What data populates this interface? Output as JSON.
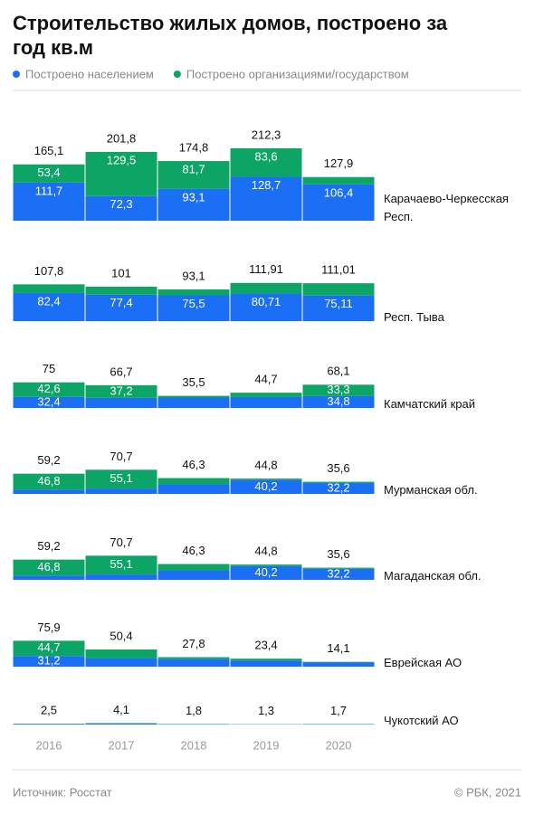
{
  "chart_data": {
    "type": "stacked_bar",
    "title": "Строительство жилых домов, построено за год кв.м",
    "categories": [
      "2016",
      "2017",
      "2018",
      "2019",
      "2020"
    ],
    "series": [
      {
        "name": "Построено населением",
        "color": "#1a6ff4"
      },
      {
        "name": "Построено организациями/государством",
        "color": "#0da566"
      }
    ],
    "ylim": [
      0,
      220
    ],
    "panels": [
      {
        "name": "Карачаево-Черкесская Респ.",
        "totals": [
          165.1,
          201.8,
          174.8,
          212.3,
          127.9
        ],
        "total_labels": [
          "165,1",
          "201,8",
          "174,8",
          "212,3",
          "127,9"
        ],
        "series": [
          {
            "values": [
              111.7,
              72.3,
              93.1,
              128.7,
              106.4
            ],
            "value_labels": [
              "111,7",
              "72,3",
              "93,1",
              "128,7",
              "106,4"
            ]
          },
          {
            "values": [
              53.4,
              129.5,
              81.7,
              83.6,
              21.5
            ],
            "value_labels": [
              "53,4",
              "129,5",
              "81,7",
              "83,6",
              null
            ]
          }
        ]
      },
      {
        "name": "Респ. Тыва",
        "totals": [
          107.8,
          101,
          93.1,
          111.91,
          111.01
        ],
        "total_labels": [
          "107,8",
          "101",
          "93,1",
          "111,91",
          "111,01"
        ],
        "series": [
          {
            "values": [
              82.4,
              77.4,
              75.5,
              80.71,
              75.11
            ],
            "value_labels": [
              "82,4",
              "77,4",
              "75,5",
              "80,71",
              "75,11"
            ]
          },
          {
            "values": [
              25.4,
              23.6,
              17.6,
              31.2,
              35.9
            ],
            "value_labels": [
              null,
              null,
              null,
              null,
              null
            ]
          }
        ]
      },
      {
        "name": "Камчатский край",
        "totals": [
          75,
          66.7,
          35.5,
          44.7,
          68.1
        ],
        "total_labels": [
          "75",
          "66,7",
          "35,5",
          "44,7",
          "68,1"
        ],
        "series": [
          {
            "values": [
              32.4,
              29.5,
              30.5,
              32.0,
              34.8
            ],
            "value_labels": [
              "32,4",
              null,
              null,
              null,
              "34,8"
            ]
          },
          {
            "values": [
              42.6,
              37.2,
              5.0,
              12.7,
              33.3
            ],
            "value_labels": [
              "42,6",
              "37,2",
              null,
              null,
              "33,3"
            ]
          }
        ]
      },
      {
        "name": "Мурманская обл.",
        "totals": [
          59.2,
          70.7,
          46.3,
          44.8,
          35.6
        ],
        "total_labels": [
          "59,2",
          "70,7",
          "46,3",
          "44,8",
          "35,6"
        ],
        "series": [
          {
            "values": [
              12.4,
              15.6,
              28.0,
              40.2,
              32.2
            ],
            "value_labels": [
              null,
              null,
              null,
              "40,2",
              "32,2"
            ]
          },
          {
            "values": [
              46.8,
              55.1,
              18.3,
              4.6,
              3.4
            ],
            "value_labels": [
              "46,8",
              "55,1",
              null,
              null,
              null
            ]
          }
        ]
      },
      {
        "name": "Магаданская обл.",
        "totals": [
          59.2,
          70.7,
          46.3,
          44.8,
          35.6
        ],
        "total_labels": [
          "59,2",
          "70,7",
          "46,3",
          "44,8",
          "35,6"
        ],
        "series": [
          {
            "values": [
              12.4,
              15.6,
              28.0,
              40.2,
              32.2
            ],
            "value_labels": [
              null,
              null,
              null,
              "40,2",
              "32,2"
            ]
          },
          {
            "values": [
              46.8,
              55.1,
              18.3,
              4.6,
              3.4
            ],
            "value_labels": [
              "46,8",
              "55,1",
              null,
              null,
              null
            ]
          }
        ]
      },
      {
        "name": "Еврейская АО",
        "totals": [
          75.9,
          50.4,
          27.8,
          23.4,
          14.1
        ],
        "total_labels": [
          "75,9",
          "50,4",
          "27,8",
          "23,4",
          "14,1"
        ],
        "series": [
          {
            "values": [
              31.2,
              25.0,
              22.0,
              18.0,
              12.0
            ],
            "value_labels": [
              "31,2",
              null,
              null,
              null,
              null
            ]
          },
          {
            "values": [
              44.7,
              25.4,
              5.8,
              5.4,
              2.1
            ],
            "value_labels": [
              "44,7",
              null,
              null,
              null,
              null
            ]
          }
        ]
      },
      {
        "name": "Чукотский АО",
        "totals": [
          2.5,
          4.1,
          1.8,
          1.3,
          1.7
        ],
        "total_labels": [
          "2,5",
          "4,1",
          "1,8",
          "1,3",
          "1,7"
        ],
        "series": [
          {
            "values": [
              1.5,
              2.5,
              1.0,
              0.8,
              1.0
            ],
            "value_labels": [
              null,
              null,
              null,
              null,
              null
            ]
          },
          {
            "values": [
              1.0,
              1.6,
              0.8,
              0.5,
              0.7
            ],
            "value_labels": [
              null,
              null,
              null,
              null,
              null
            ]
          }
        ]
      }
    ],
    "source": "Источник: Росстат",
    "credit": "© РБК, 2021"
  }
}
